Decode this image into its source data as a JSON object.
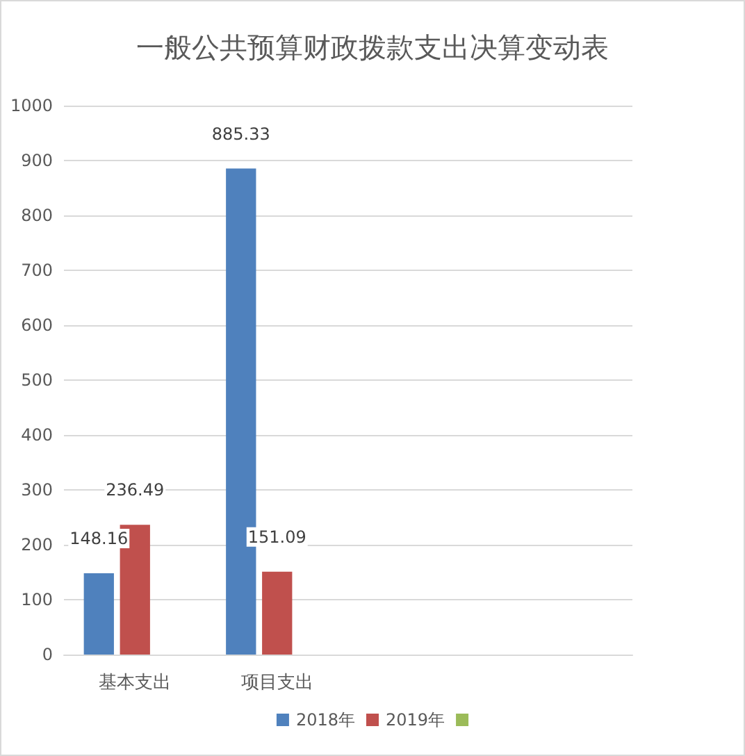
{
  "chart_data": {
    "type": "bar",
    "title": "一般公共预算财政拨款支出决算变动表",
    "categories": [
      "基本支出",
      "项目支出",
      null,
      null
    ],
    "series": [
      {
        "name": "2018年",
        "color": "#4f81bd",
        "values": [
          148.16,
          885.33,
          null,
          null
        ]
      },
      {
        "name": "2019年",
        "color": "#c0504d",
        "values": [
          236.49,
          151.09,
          null,
          null
        ]
      },
      {
        "color": "#9bbb59",
        "values": [
          null,
          null,
          null,
          null
        ]
      }
    ],
    "ylim": [
      0,
      1000
    ],
    "yticks": [
      0,
      100,
      200,
      300,
      400,
      500,
      600,
      700,
      800,
      900,
      1000
    ],
    "grid": "y",
    "legend": "bottom",
    "data_labels": true
  }
}
